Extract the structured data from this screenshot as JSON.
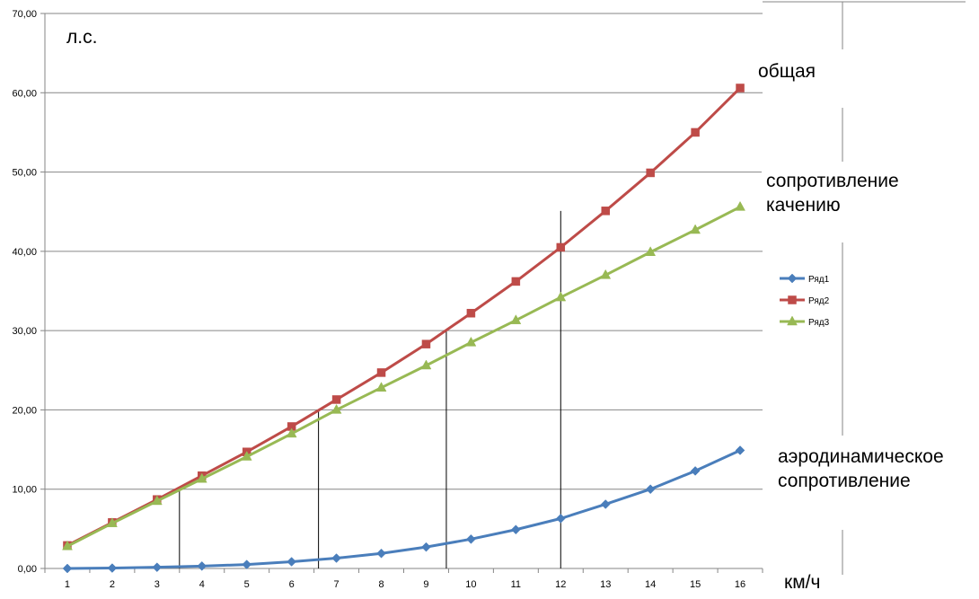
{
  "chart_data": {
    "type": "line",
    "categories": [
      "1",
      "2",
      "3",
      "4",
      "5",
      "6",
      "7",
      "8",
      "9",
      "10",
      "11",
      "12",
      "13",
      "14",
      "15",
      "16"
    ],
    "ylim": [
      0,
      70
    ],
    "ytick_labels": [
      "0,00",
      "10,00",
      "20,00",
      "30,00",
      "40,00",
      "50,00",
      "60,00",
      "70,00"
    ],
    "ylabel": "л.с.",
    "xlabel": "км/ч",
    "grid": "horizontal",
    "legend_position": "right",
    "series": [
      {
        "name": "Ряд1",
        "color": "#4a7ebb",
        "marker": "diamond",
        "values": [
          0.0,
          0.05,
          0.15,
          0.3,
          0.5,
          0.85,
          1.3,
          1.9,
          2.7,
          3.7,
          4.9,
          6.3,
          8.1,
          10.0,
          12.3,
          14.9
        ]
      },
      {
        "name": "Ряд2",
        "color": "#be4b48",
        "marker": "square",
        "values": [
          2.9,
          5.8,
          8.7,
          11.7,
          14.7,
          17.9,
          21.3,
          24.7,
          28.3,
          32.2,
          36.2,
          40.5,
          45.1,
          49.9,
          55.0,
          60.6
        ]
      },
      {
        "name": "Ряд3",
        "color": "#98b954",
        "marker": "triangle",
        "values": [
          2.8,
          5.7,
          8.5,
          11.3,
          14.1,
          17.0,
          20.0,
          22.8,
          25.6,
          28.5,
          31.3,
          34.2,
          37.0,
          39.9,
          42.7,
          45.6
        ]
      }
    ],
    "annotations": [
      {
        "lines": [
          "общая"
        ]
      },
      {
        "lines": [
          "сопротивление",
          "качению"
        ]
      },
      {
        "lines": [
          "аэродинамическое",
          "сопротивление"
        ]
      }
    ],
    "reference_lines_x": [
      3.5,
      6.6,
      9.45,
      12.0
    ]
  }
}
